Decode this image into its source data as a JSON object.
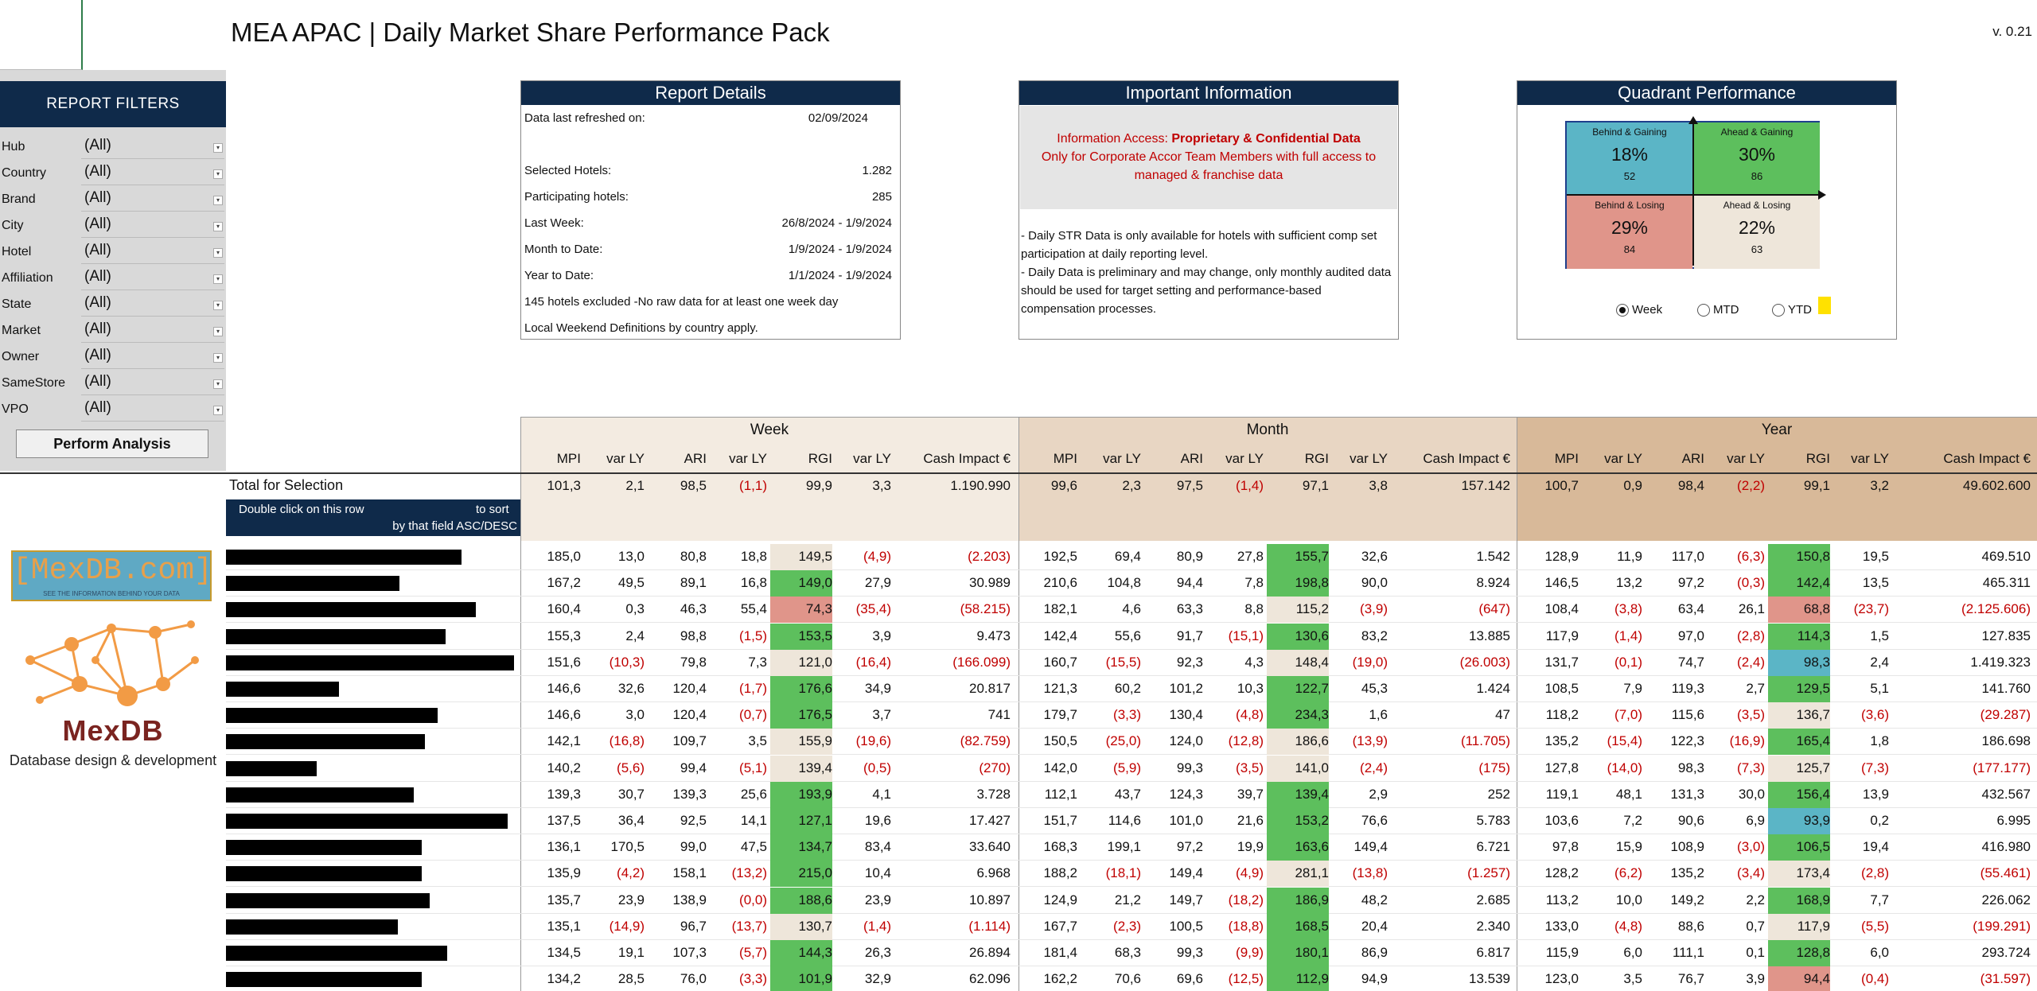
{
  "title": "MEA APAC | Daily Market Share Performance Pack",
  "version": "v. 0.21",
  "filters": {
    "header": "REPORT FILTERS",
    "items": [
      {
        "label": "Hub",
        "value": "(All)"
      },
      {
        "label": "Country",
        "value": "(All)"
      },
      {
        "label": "Brand",
        "value": "(All)"
      },
      {
        "label": "City",
        "value": "(All)"
      },
      {
        "label": "Hotel",
        "value": "(All)"
      },
      {
        "label": "Affiliation",
        "value": "(All)"
      },
      {
        "label": "State",
        "value": "(All)"
      },
      {
        "label": "Market",
        "value": "(All)"
      },
      {
        "label": "Owner",
        "value": "(All)"
      },
      {
        "label": "SameStore",
        "value": "(All)"
      },
      {
        "label": "VPO",
        "value": "(All)"
      }
    ],
    "perform_button": "Perform Analysis"
  },
  "logo": {
    "text": "[MexDB.com]",
    "tagline": "SEE THE INFORMATION BEHIND YOUR DATA",
    "mark": "MexDB",
    "subtitle": "Database design & development"
  },
  "report_details": {
    "title": "Report Details",
    "rows": [
      {
        "label": "Data last refreshed on:",
        "value": "02/09/2024"
      },
      {
        "label": "Selected Hotels:",
        "value": "1.282"
      },
      {
        "label": "Participating hotels:",
        "value": "285"
      },
      {
        "label": "Last Week:",
        "value": "26/8/2024 - 1/9/2024"
      },
      {
        "label": "Month to Date:",
        "value": "1/9/2024 - 1/9/2024"
      },
      {
        "label": "Year to Date:",
        "value": "1/1/2024 - 1/9/2024"
      }
    ],
    "note1": "145 hotels excluded -No raw data for at least one week day",
    "note2": "Local Weekend Definitions by country apply."
  },
  "important_info": {
    "title": "Important Information",
    "access_prefix": "Information Access: ",
    "access_bold": "Proprietary & Confidential Data",
    "access_line2": "Only for Corporate Accor Team Members with full access to",
    "access_line3": "managed & franchise data",
    "note1": "- Daily STR Data is only available for hotels with sufficient comp set participation at daily reporting level.",
    "note2": "- Daily Data is preliminary and may change, only monthly audited data should be used for target setting and performance-based compensation processes."
  },
  "quadrant": {
    "title": "Quadrant Performance",
    "behind_gaining": {
      "label": "Behind & Gaining",
      "pct": "18%",
      "count": "52"
    },
    "ahead_gaining": {
      "label": "Ahead & Gaining",
      "pct": "30%",
      "count": "86"
    },
    "behind_losing": {
      "label": "Behind & Losing",
      "pct": "29%",
      "count": "84"
    },
    "ahead_losing": {
      "label": "Ahead & Losing",
      "pct": "22%",
      "count": "63"
    },
    "options": [
      "Week",
      "MTD",
      "YTD"
    ],
    "selected": "Week",
    "colors": {
      "behind_gaining": "#5bb5c6",
      "ahead_gaining": "#5dbf5d",
      "behind_losing": "#e0958a",
      "ahead_losing": "#eee6da"
    }
  },
  "table": {
    "groups": [
      "Week",
      "Month",
      "Year"
    ],
    "columns": [
      "MPI",
      "var LY",
      "ARI",
      "var LY",
      "RGI",
      "var LY",
      "Cash Impact €"
    ],
    "total": {
      "label": "Total for Selection",
      "values": [
        "101,3",
        "2,1",
        "98,5",
        "(1,1)",
        "99,9",
        "3,3",
        "1.190.990",
        "99,6",
        "2,3",
        "97,5",
        "(1,4)",
        "97,1",
        "3,8",
        "157.142",
        "100,7",
        "0,9",
        "98,4",
        "(2,2)",
        "99,1",
        "3,2",
        "49.602.600"
      ]
    },
    "sort_hint_1": "Double click on this row",
    "sort_hint_1b": "to sort",
    "sort_hint_2": "by that field ASC/DESC",
    "rows": [
      [
        "185,0",
        "13,0",
        "80,8",
        "18,8",
        "149,5",
        "(4,9)",
        "(2.203)",
        "192,5",
        "69,4",
        "80,9",
        "27,8",
        "155,7",
        "32,6",
        "1.542",
        "128,9",
        "11,9",
        "117,0",
        "(6,3)",
        "150,8",
        "19,5",
        "469.510"
      ],
      [
        "167,2",
        "49,5",
        "89,1",
        "16,8",
        "149,0",
        "27,9",
        "30.989",
        "210,6",
        "104,8",
        "94,4",
        "7,8",
        "198,8",
        "90,0",
        "8.924",
        "146,5",
        "13,2",
        "97,2",
        "(0,3)",
        "142,4",
        "13,5",
        "465.311"
      ],
      [
        "160,4",
        "0,3",
        "46,3",
        "55,4",
        "74,3",
        "(35,4)",
        "(58.215)",
        "182,1",
        "4,6",
        "63,3",
        "8,8",
        "115,2",
        "(3,9)",
        "(647)",
        "108,4",
        "(3,8)",
        "63,4",
        "26,1",
        "68,8",
        "(23,7)",
        "(2.125.606)"
      ],
      [
        "155,3",
        "2,4",
        "98,8",
        "(1,5)",
        "153,5",
        "3,9",
        "9.473",
        "142,4",
        "55,6",
        "91,7",
        "(15,1)",
        "130,6",
        "83,2",
        "13.885",
        "117,9",
        "(1,4)",
        "97,0",
        "(2,8)",
        "114,3",
        "1,5",
        "127.835"
      ],
      [
        "151,6",
        "(10,3)",
        "79,8",
        "7,3",
        "121,0",
        "(16,4)",
        "(166.099)",
        "160,7",
        "(15,5)",
        "92,3",
        "4,3",
        "148,4",
        "(19,0)",
        "(26.003)",
        "131,7",
        "(0,1)",
        "74,7",
        "(2,4)",
        "98,3",
        "2,4",
        "1.419.323"
      ],
      [
        "146,6",
        "32,6",
        "120,4",
        "(1,7)",
        "176,6",
        "34,9",
        "20.817",
        "121,3",
        "60,2",
        "101,2",
        "10,3",
        "122,7",
        "45,3",
        "1.424",
        "108,5",
        "7,9",
        "119,3",
        "2,7",
        "129,5",
        "5,1",
        "141.760"
      ],
      [
        "146,6",
        "3,0",
        "120,4",
        "(0,7)",
        "176,5",
        "3,7",
        "741",
        "179,7",
        "(3,3)",
        "130,4",
        "(4,8)",
        "234,3",
        "1,6",
        "47",
        "118,2",
        "(7,0)",
        "115,6",
        "(3,5)",
        "136,7",
        "(3,6)",
        "(29.287)"
      ],
      [
        "142,1",
        "(16,8)",
        "109,7",
        "3,5",
        "155,9",
        "(19,6)",
        "(82.759)",
        "150,5",
        "(25,0)",
        "124,0",
        "(12,8)",
        "186,6",
        "(13,9)",
        "(11.705)",
        "135,2",
        "(15,4)",
        "122,3",
        "(16,9)",
        "165,4",
        "1,8",
        "186.698"
      ],
      [
        "140,2",
        "(5,6)",
        "99,4",
        "(5,1)",
        "139,4",
        "(0,5)",
        "(270)",
        "142,0",
        "(5,9)",
        "99,3",
        "(3,5)",
        "141,0",
        "(2,4)",
        "(175)",
        "127,8",
        "(14,0)",
        "98,3",
        "(7,3)",
        "125,7",
        "(7,3)",
        "(177.177)"
      ],
      [
        "139,3",
        "30,7",
        "139,3",
        "25,6",
        "193,9",
        "4,1",
        "3.728",
        "112,1",
        "43,7",
        "124,3",
        "39,7",
        "139,4",
        "2,9",
        "252",
        "119,1",
        "48,1",
        "131,3",
        "30,0",
        "156,4",
        "13,9",
        "432.567"
      ],
      [
        "137,5",
        "36,4",
        "92,5",
        "14,1",
        "127,1",
        "19,6",
        "17.427",
        "151,7",
        "114,6",
        "101,0",
        "21,6",
        "153,2",
        "76,6",
        "5.783",
        "103,6",
        "7,2",
        "90,6",
        "6,9",
        "93,9",
        "0,2",
        "6.995"
      ],
      [
        "136,1",
        "170,5",
        "99,0",
        "47,5",
        "134,7",
        "83,4",
        "33.640",
        "168,3",
        "199,1",
        "97,2",
        "19,9",
        "163,6",
        "149,4",
        "6.721",
        "97,8",
        "15,9",
        "108,9",
        "(3,0)",
        "106,5",
        "19,4",
        "416.980"
      ],
      [
        "135,9",
        "(4,2)",
        "158,1",
        "(13,2)",
        "215,0",
        "10,4",
        "6.968",
        "188,2",
        "(18,1)",
        "149,4",
        "(4,9)",
        "281,1",
        "(13,8)",
        "(1.257)",
        "128,2",
        "(6,2)",
        "135,2",
        "(3,4)",
        "173,4",
        "(2,8)",
        "(55.461)"
      ],
      [
        "135,7",
        "23,9",
        "138,9",
        "(0,0)",
        "188,6",
        "23,9",
        "10.897",
        "124,9",
        "21,2",
        "149,7",
        "(18,2)",
        "186,9",
        "48,2",
        "2.685",
        "113,2",
        "10,0",
        "149,2",
        "2,2",
        "168,9",
        "7,7",
        "226.062"
      ],
      [
        "135,1",
        "(14,9)",
        "96,7",
        "(13,7)",
        "130,7",
        "(1,4)",
        "(1.114)",
        "167,7",
        "(2,3)",
        "100,5",
        "(18,8)",
        "168,5",
        "20,4",
        "2.340",
        "133,0",
        "(4,8)",
        "88,6",
        "0,7",
        "117,9",
        "(5,5)",
        "(199.291)"
      ],
      [
        "134,5",
        "19,1",
        "107,3",
        "(5,7)",
        "144,3",
        "26,3",
        "26.894",
        "181,4",
        "68,3",
        "99,3",
        "(9,9)",
        "180,1",
        "86,9",
        "6.817",
        "115,9",
        "6,0",
        "111,1",
        "0,1",
        "128,8",
        "6,0",
        "293.724"
      ],
      [
        "134,2",
        "28,5",
        "76,0",
        "(3,3)",
        "101,9",
        "32,9",
        "62.096",
        "162,2",
        "70,6",
        "69,6",
        "(12,5)",
        "112,9",
        "94,9",
        "13.539",
        "123,0",
        "3,5",
        "76,7",
        "3,9",
        "94,4",
        "(0,4)",
        "(31.597)"
      ]
    ],
    "rgi_colors": [
      [
        "#eee6da",
        "#5dbf5d",
        "#5dbf5d"
      ],
      [
        "#5dbf5d",
        "#5dbf5d",
        "#5dbf5d"
      ],
      [
        "#e0958a",
        "#eee6da",
        "#e0958a"
      ],
      [
        "#5dbf5d",
        "#5dbf5d",
        "#5dbf5d"
      ],
      [
        "#eee6da",
        "#eee6da",
        "#5bb5c6"
      ],
      [
        "#5dbf5d",
        "#5dbf5d",
        "#5dbf5d"
      ],
      [
        "#5dbf5d",
        "#5dbf5d",
        "#eee6da"
      ],
      [
        "#eee6da",
        "#eee6da",
        "#5dbf5d"
      ],
      [
        "#eee6da",
        "#eee6da",
        "#eee6da"
      ],
      [
        "#5dbf5d",
        "#5dbf5d",
        "#5dbf5d"
      ],
      [
        "#5dbf5d",
        "#5dbf5d",
        "#5bb5c6"
      ],
      [
        "#5dbf5d",
        "#5dbf5d",
        "#5dbf5d"
      ],
      [
        "#5dbf5d",
        "#eee6da",
        "#eee6da"
      ],
      [
        "#5dbf5d",
        "#5dbf5d",
        "#5dbf5d"
      ],
      [
        "#eee6da",
        "#5dbf5d",
        "#eee6da"
      ],
      [
        "#5dbf5d",
        "#5dbf5d",
        "#5dbf5d"
      ],
      [
        "#5dbf5d",
        "#5dbf5d",
        "#e0958a"
      ]
    ]
  }
}
